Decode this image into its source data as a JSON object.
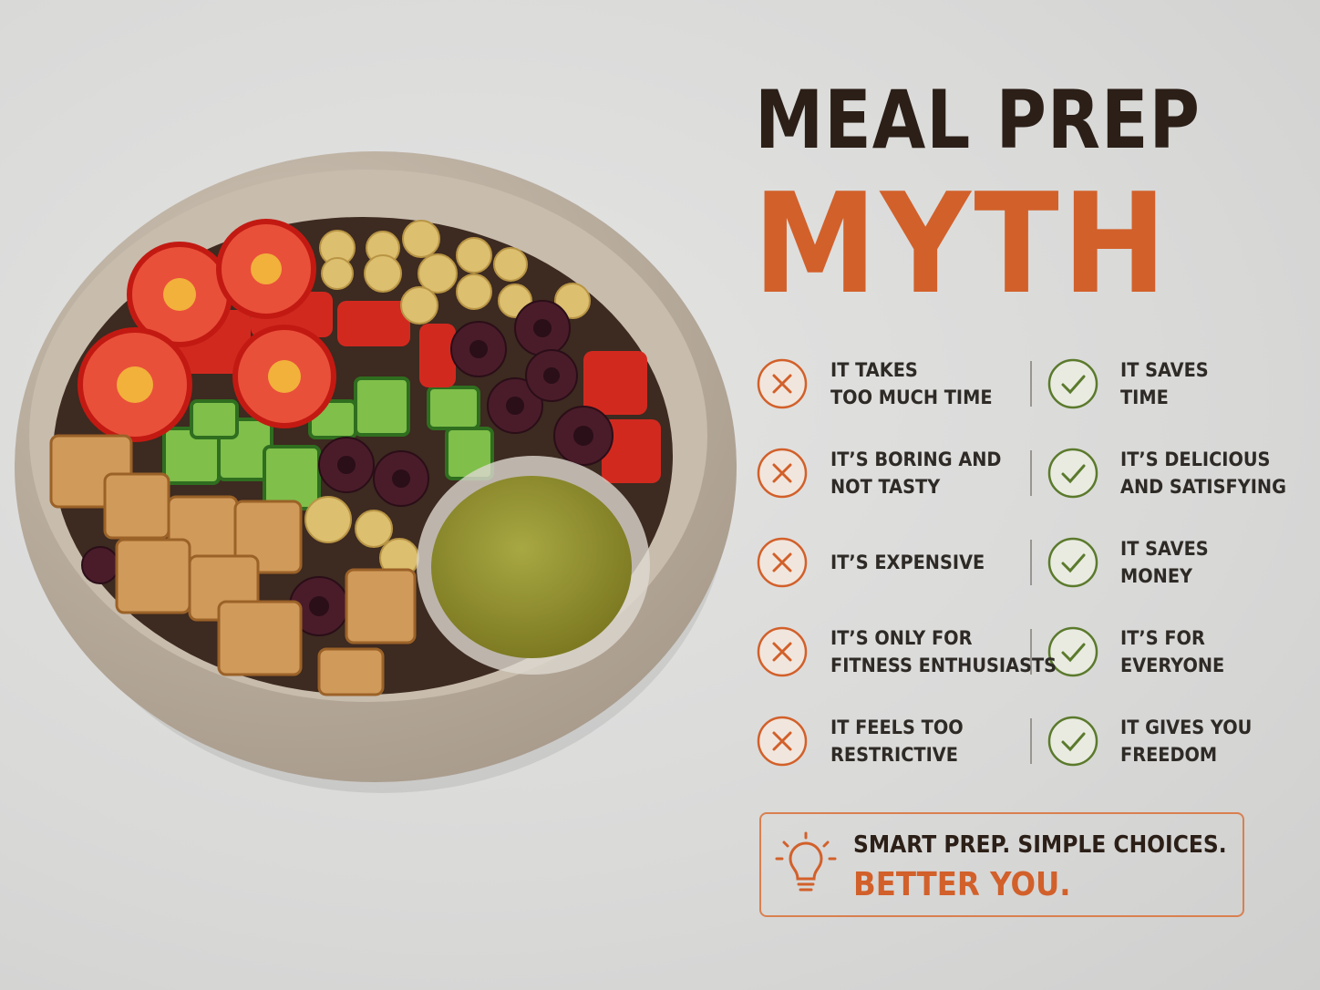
{
  "title": {
    "line1": "MEAL PREP",
    "line2": "MYTH"
  },
  "rows": [
    {
      "myth": [
        "IT TAKES",
        "TOO MUCH TIME"
      ],
      "fact": [
        "IT SAVES",
        "TIME"
      ]
    },
    {
      "myth": [
        "IT’S BORING AND",
        "NOT TASTY"
      ],
      "fact": [
        "IT’S DELICIOUS",
        "AND SATISFYING"
      ]
    },
    {
      "myth": [
        "IT’S EXPENSIVE"
      ],
      "fact": [
        "IT SAVES",
        "MONEY"
      ]
    },
    {
      "myth": [
        "IT’S ONLY FOR",
        "FITNESS ENTHUSIASTS"
      ],
      "fact": [
        "IT’S FOR",
        "EVERYONE"
      ]
    },
    {
      "myth": [
        "IT FEELS TOO",
        "RESTRICTIVE"
      ],
      "fact": [
        "IT GIVES YOU",
        "FREEDOM"
      ]
    }
  ],
  "tagline": {
    "line1": "SMART PREP. SIMPLE CHOICES.",
    "line2": "BETTER YOU."
  }
}
